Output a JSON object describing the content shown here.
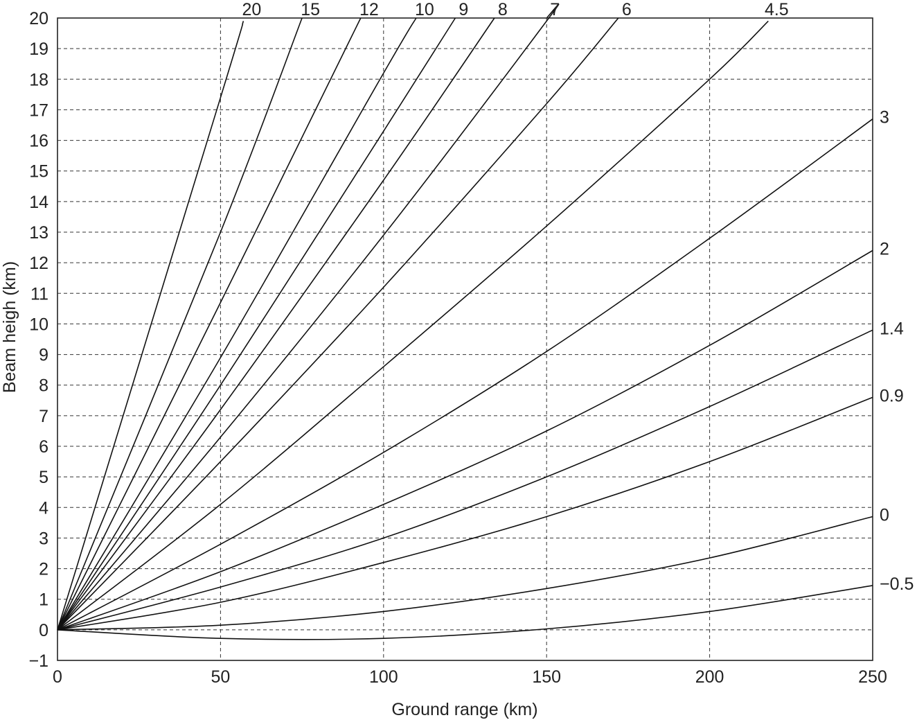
{
  "chart_data": {
    "type": "line",
    "xlabel": "Ground range (km)",
    "ylabel": "Beam heigh (km)",
    "xlim": [
      0,
      250
    ],
    "ylim": [
      -1,
      20
    ],
    "x_ticks": [
      0,
      50,
      100,
      150,
      200,
      250
    ],
    "y_ticks": [
      -1,
      0,
      1,
      2,
      3,
      4,
      5,
      6,
      7,
      8,
      9,
      10,
      11,
      12,
      13,
      14,
      15,
      16,
      17,
      18,
      19,
      20
    ],
    "x_tick_labels": [
      "0",
      "50",
      "100",
      "150",
      "200",
      "250"
    ],
    "y_tick_labels": [
      "−1",
      "0",
      "1",
      "2",
      "3",
      "4",
      "5",
      "6",
      "7",
      "8",
      "9",
      "10",
      "11",
      "12",
      "13",
      "14",
      "15",
      "16",
      "17",
      "18",
      "19",
      "20"
    ],
    "grid": true,
    "series": [
      {
        "name": "20",
        "elevation_deg": 20,
        "x": [
          0,
          50,
          57
        ],
        "y": [
          0,
          17.4,
          19.9
        ]
      },
      {
        "name": "15",
        "elevation_deg": 15,
        "x": [
          0,
          50,
          75
        ],
        "y": [
          0,
          13.0,
          20.0
        ]
      },
      {
        "name": "12",
        "elevation_deg": 12,
        "x": [
          0,
          50,
          93
        ],
        "y": [
          0,
          10.7,
          20.0
        ]
      },
      {
        "name": "10",
        "elevation_deg": 10,
        "x": [
          0,
          50,
          100,
          110
        ],
        "y": [
          0,
          8.9,
          18.2,
          20.0
        ]
      },
      {
        "name": "9",
        "elevation_deg": 9,
        "x": [
          0,
          50,
          100,
          122
        ],
        "y": [
          0,
          8.0,
          16.3,
          20.0
        ]
      },
      {
        "name": "8",
        "elevation_deg": 8,
        "x": [
          0,
          50,
          100,
          134
        ],
        "y": [
          0,
          7.2,
          14.7,
          20.0
        ]
      },
      {
        "name": "7",
        "elevation_deg": 7,
        "x": [
          0,
          50,
          100,
          150,
          150
        ],
        "y": [
          0,
          6.3,
          12.9,
          19.9,
          20.0
        ]
      },
      {
        "name": "6",
        "elevation_deg": 6,
        "x": [
          0,
          50,
          100,
          150,
          172
        ],
        "y": [
          0,
          5.5,
          11.2,
          17.2,
          20.0
        ]
      },
      {
        "name": "4.5",
        "elevation_deg": 4.5,
        "x": [
          0,
          50,
          100,
          150,
          200,
          218
        ],
        "y": [
          0,
          4.1,
          8.6,
          13.2,
          18.0,
          19.9
        ]
      },
      {
        "name": "3",
        "elevation_deg": 3,
        "x": [
          0,
          50,
          100,
          150,
          200,
          250
        ],
        "y": [
          0,
          2.8,
          5.8,
          9.1,
          12.8,
          16.7
        ]
      },
      {
        "name": "2",
        "elevation_deg": 2,
        "x": [
          0,
          50,
          100,
          150,
          200,
          250
        ],
        "y": [
          0,
          1.9,
          4.1,
          6.5,
          9.3,
          12.4
        ]
      },
      {
        "name": "1.4",
        "elevation_deg": 1.4,
        "x": [
          0,
          50,
          100,
          150,
          200,
          250
        ],
        "y": [
          0,
          1.4,
          3.0,
          5.0,
          7.3,
          9.8
        ]
      },
      {
        "name": "0.9",
        "elevation_deg": 0.9,
        "x": [
          0,
          50,
          100,
          150,
          200,
          250
        ],
        "y": [
          0,
          0.9,
          2.2,
          3.7,
          5.5,
          7.6
        ]
      },
      {
        "name": "0",
        "elevation_deg": 0,
        "x": [
          0,
          50,
          100,
          150,
          200,
          250
        ],
        "y": [
          0,
          0.15,
          0.6,
          1.35,
          2.35,
          3.7
        ]
      },
      {
        "name": "−0.5",
        "elevation_deg": -0.5,
        "x": [
          0,
          50,
          100,
          150,
          200,
          250
        ],
        "y": [
          0,
          -0.28,
          -0.28,
          0.03,
          0.6,
          1.45
        ]
      }
    ]
  }
}
